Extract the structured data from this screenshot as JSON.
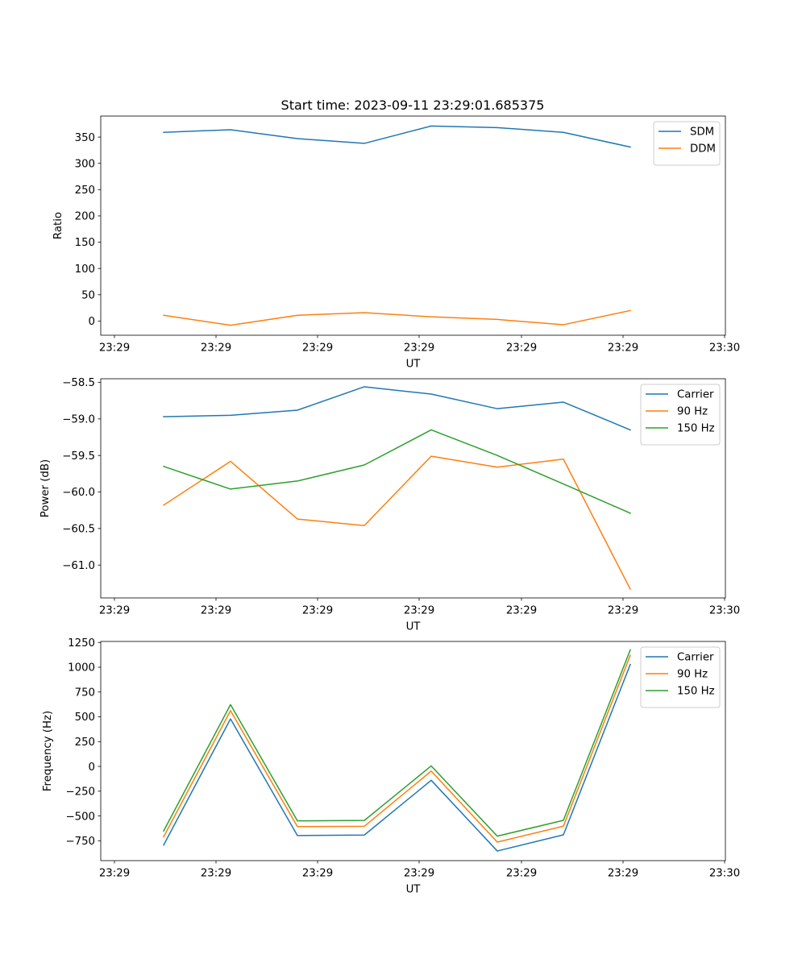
{
  "figure_title": "Start time: 2023-09-11 23:29:01.685375",
  "chart_data": [
    {
      "type": "line",
      "title": "Start time: 2023-09-11 23:29:01.685375",
      "xlabel": "UT",
      "ylabel": "Ratio",
      "ylim": [
        -27,
        390
      ],
      "yticks": [
        0,
        50,
        100,
        150,
        200,
        250,
        300,
        350
      ],
      "ytick_labels": [
        "0",
        "50",
        "100",
        "150",
        "200",
        "250",
        "300",
        "350"
      ],
      "xtick_labels": [
        "23:29",
        "23:29",
        "23:29",
        "23:29",
        "23:29",
        "23:29",
        "23:29",
        "23:30"
      ],
      "legend_position": "top-right",
      "series": [
        {
          "name": "SDM",
          "color": "#1f77b4",
          "values": [
            359,
            364,
            347,
            338,
            371,
            368,
            359,
            331
          ]
        },
        {
          "name": "DDM",
          "color": "#ff7f0e",
          "values": [
            11,
            -8,
            11,
            16,
            8,
            3,
            -7,
            20
          ]
        }
      ]
    },
    {
      "type": "line",
      "title": "",
      "xlabel": "UT",
      "ylabel": "Power (dB)",
      "ylim": [
        -61.45,
        -58.45
      ],
      "yticks": [
        -61.0,
        -60.5,
        -60.0,
        -59.5,
        -59.0,
        -58.5
      ],
      "ytick_labels": [
        "−61.0",
        "−60.5",
        "−60.0",
        "−59.5",
        "−59.0",
        "−58.5"
      ],
      "xtick_labels": [
        "23:29",
        "23:29",
        "23:29",
        "23:29",
        "23:29",
        "23:29",
        "23:29",
        "23:30"
      ],
      "legend_position": "top-right",
      "series": [
        {
          "name": "Carrier",
          "color": "#1f77b4",
          "values": [
            -58.97,
            -58.95,
            -58.88,
            -58.56,
            -58.66,
            -58.86,
            -58.77,
            -59.15
          ]
        },
        {
          "name": "90 Hz",
          "color": "#ff7f0e",
          "values": [
            -60.18,
            -59.58,
            -60.37,
            -60.46,
            -59.51,
            -59.66,
            -59.55,
            -61.33
          ]
        },
        {
          "name": "150 Hz",
          "color": "#2ca02c",
          "values": [
            -59.65,
            -59.96,
            -59.85,
            -59.63,
            -59.15,
            -59.5,
            -59.89,
            -60.29
          ]
        }
      ]
    },
    {
      "type": "line",
      "title": "",
      "xlabel": "UT",
      "ylabel": "Frequency (Hz)",
      "ylim": [
        -950,
        1260
      ],
      "yticks": [
        -750,
        -500,
        -250,
        0,
        250,
        500,
        750,
        1000,
        1250
      ],
      "ytick_labels": [
        "−750",
        "−500",
        "−250",
        "0",
        "250",
        "500",
        "750",
        "1000",
        "1250"
      ],
      "xtick_labels": [
        "23:29",
        "23:29",
        "23:29",
        "23:29",
        "23:29",
        "23:29",
        "23:29",
        "23:30"
      ],
      "legend_position": "top-right",
      "series": [
        {
          "name": "Carrier",
          "color": "#1f77b4",
          "values": [
            -793,
            479,
            -697,
            -692,
            -140,
            -853,
            -690,
            1028
          ]
        },
        {
          "name": "90 Hz",
          "color": "#ff7f0e",
          "values": [
            -710,
            562,
            -607,
            -604,
            -47,
            -763,
            -603,
            1120
          ]
        },
        {
          "name": "150 Hz",
          "color": "#2ca02c",
          "values": [
            -651,
            623,
            -549,
            -545,
            5,
            -703,
            -544,
            1175
          ]
        }
      ]
    }
  ]
}
